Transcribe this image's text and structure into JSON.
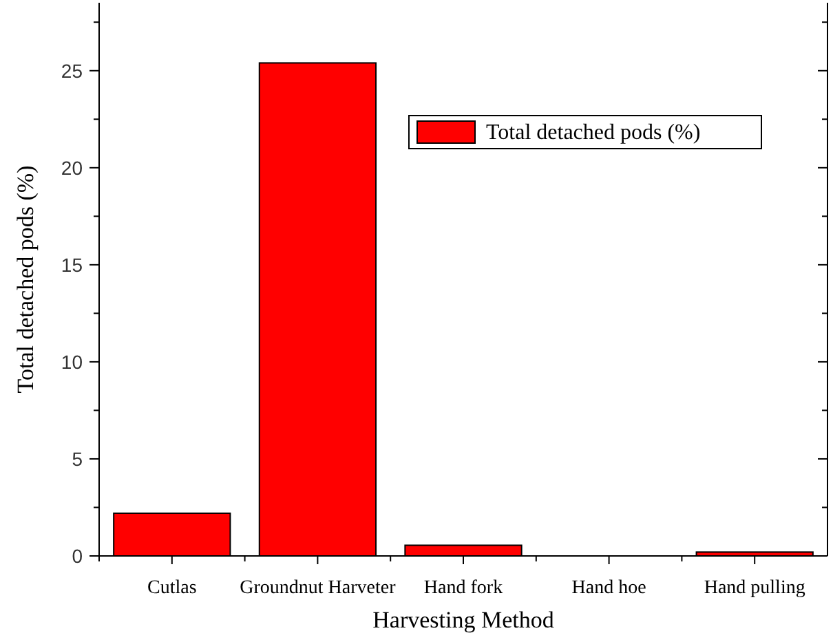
{
  "chart_data": {
    "type": "bar",
    "xlabel": "Harvesting Method",
    "ylabel": "Total detached pods (%)",
    "categories": [
      "Cutlas",
      "Groundnut Harveter",
      "Hand fork",
      "Hand hoe",
      "Hand pulling"
    ],
    "series": [
      {
        "name": "Total detached pods (%)",
        "color": "#ff0000",
        "values": [
          2.2,
          25.4,
          0.55,
          0,
          0.2
        ]
      }
    ],
    "ylim": [
      0,
      28.5
    ],
    "yticks": [
      0,
      5,
      10,
      15,
      20,
      25
    ],
    "legend": "top right"
  }
}
